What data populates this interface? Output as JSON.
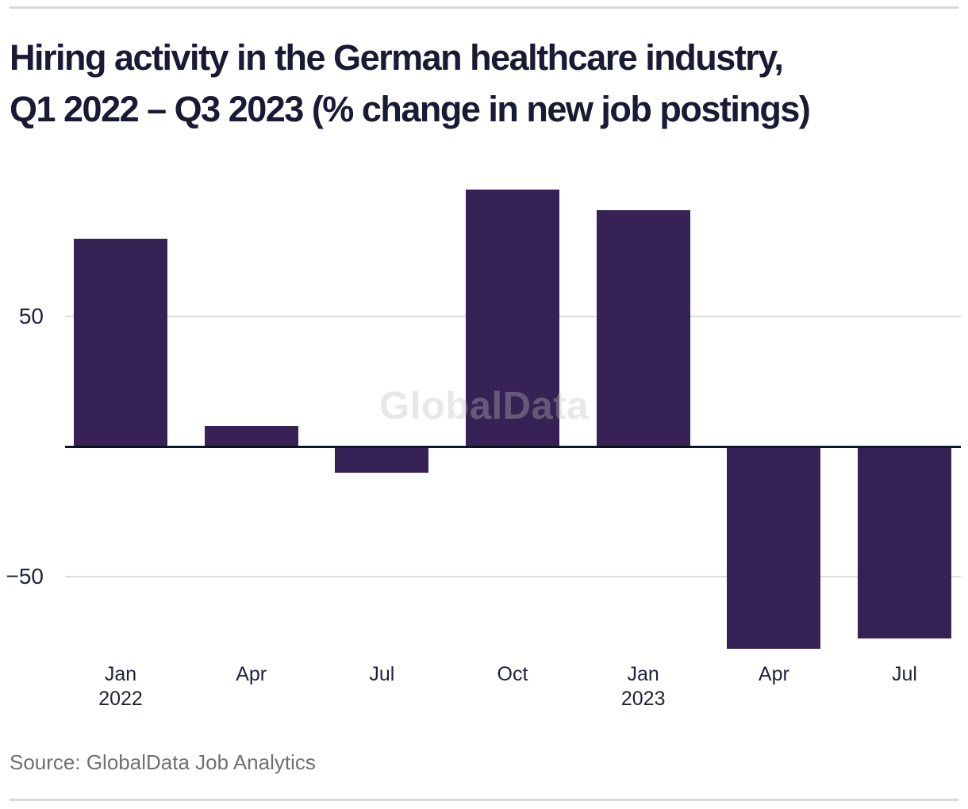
{
  "page": {
    "title_line1": "Hiring activity in the German healthcare industry,",
    "title_line2": "Q1 2022 – Q3 2023 (% change in new job postings)",
    "watermark": "GlobalData",
    "source": "Source: GlobalData Job Analytics"
  },
  "colors": {
    "bar": "#362254",
    "title_text": "#191a33",
    "zero_axis": "#0e1426",
    "gridline": "#dcdcdc",
    "tick_label": "#1f2238",
    "source_text": "#707070",
    "rule": "#d9d9d9",
    "watermark": "rgba(190,190,190,0.35)"
  },
  "chart_data": {
    "type": "bar",
    "title": "Hiring activity in the German healthcare industry, Q1 2022 – Q3 2023 (% change in new job postings)",
    "categories": [
      "Jan 2022",
      "Apr 2022",
      "Jul 2022",
      "Oct 2022",
      "Jan 2023",
      "Apr 2023",
      "Jul 2023"
    ],
    "category_labels": [
      [
        "Jan",
        "2022"
      ],
      [
        "Apr"
      ],
      [
        "Jul"
      ],
      [
        "Oct"
      ],
      [
        "Jan",
        "2023"
      ],
      [
        "Apr"
      ],
      [
        "Jul"
      ]
    ],
    "values": [
      80,
      8,
      -10,
      99,
      91,
      -78,
      -74
    ],
    "series_name": "% change in new job postings",
    "xlabel": "",
    "ylabel": "",
    "yticks": [
      {
        "value": 50,
        "label": "50"
      },
      {
        "value": -50,
        "label": "−50"
      }
    ],
    "ylim": [
      -85,
      105
    ],
    "grid": "horizontal",
    "legend": false,
    "watermark": "GlobalData",
    "source": "Source: GlobalData Job Analytics"
  }
}
